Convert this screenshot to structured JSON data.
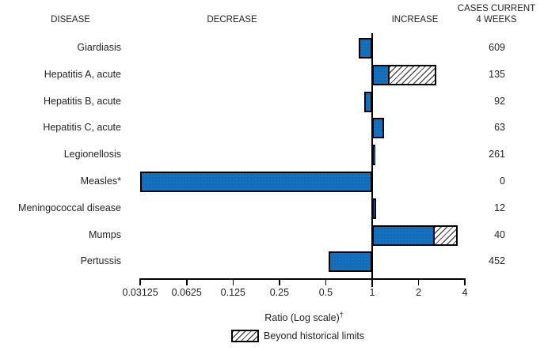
{
  "header": {
    "disease": "DISEASE",
    "decrease": "DECREASE",
    "increase": "INCREASE",
    "cases_line1": "CASES CURRENT",
    "cases_line2": "4 WEEKS"
  },
  "chart_data": {
    "type": "bar",
    "orientation": "horizontal",
    "scale": "log2",
    "axis": {
      "label": "Ratio (Log scale)",
      "label_suffix": "†",
      "min": 0.03125,
      "max": 4,
      "ticks": [
        0.03125,
        0.0625,
        0.125,
        0.25,
        0.5,
        1,
        2,
        4
      ],
      "tick_labels": [
        "0.03125",
        "0.0625",
        "0.125",
        "0.25",
        "0.5",
        "1",
        "2",
        "4"
      ],
      "reference_value": 1
    },
    "rows": [
      {
        "disease": "Giardiasis",
        "ratio": 0.82,
        "historical_limit": null,
        "beyond_limit": false,
        "cases": 609
      },
      {
        "disease": "Hepatitis A, acute",
        "ratio": 2.6,
        "historical_limit": 1.26,
        "beyond_limit": true,
        "cases": 135
      },
      {
        "disease": "Hepatitis B, acute",
        "ratio": 0.89,
        "historical_limit": null,
        "beyond_limit": false,
        "cases": 92
      },
      {
        "disease": "Hepatitis C, acute",
        "ratio": 1.19,
        "historical_limit": null,
        "beyond_limit": false,
        "cases": 63
      },
      {
        "disease": "Legionellosis",
        "ratio": 1.05,
        "historical_limit": null,
        "beyond_limit": false,
        "cases": 261
      },
      {
        "disease": "Measles*",
        "ratio": 0.03125,
        "historical_limit": null,
        "beyond_limit": false,
        "cases": 0
      },
      {
        "disease": "Meningococcal disease",
        "ratio": 1.06,
        "historical_limit": null,
        "beyond_limit": false,
        "cases": 12
      },
      {
        "disease": "Mumps",
        "ratio": 3.6,
        "historical_limit": 2.5,
        "beyond_limit": true,
        "cases": 40
      },
      {
        "disease": "Pertussis",
        "ratio": 0.52,
        "historical_limit": null,
        "beyond_limit": false,
        "cases": 452
      }
    ],
    "legend": {
      "label": "Beyond historical limits"
    }
  },
  "colors": {
    "bar_fill": "#1371bd",
    "bar_fill_dots": "#0a4e92",
    "bar_border": "#000000",
    "hatch_line": "#4f4f51",
    "text": "#231f20"
  }
}
